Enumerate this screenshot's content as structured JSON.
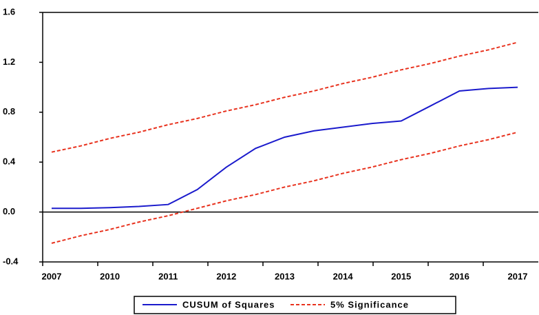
{
  "chart_data": {
    "type": "line",
    "categories": [
      "2007",
      null,
      "2010",
      null,
      "2011",
      null,
      "2012",
      null,
      "2013",
      null,
      "2014",
      null,
      "2015",
      null,
      "2016",
      null,
      "2017"
    ],
    "series": [
      {
        "name": "CUSUM of Squares",
        "color": "#1a1acc",
        "dashed": false,
        "values": [
          0.03,
          0.03,
          0.035,
          0.045,
          0.06,
          0.18,
          0.36,
          0.51,
          0.6,
          0.65,
          0.68,
          0.71,
          0.73,
          0.85,
          0.97,
          0.99,
          1.0
        ]
      },
      {
        "name": "5% Significance",
        "color": "#e8321e",
        "dashed": true,
        "values": [
          0.48,
          0.53,
          0.59,
          0.64,
          0.7,
          0.75,
          0.81,
          0.86,
          0.92,
          0.97,
          1.03,
          1.08,
          1.14,
          1.19,
          1.25,
          1.3,
          1.36
        ]
      },
      {
        "name": null,
        "color": "#e8321e",
        "dashed": true,
        "values": [
          -0.25,
          -0.19,
          -0.14,
          -0.08,
          -0.03,
          0.03,
          0.09,
          0.14,
          0.2,
          0.25,
          0.31,
          0.36,
          0.42,
          0.47,
          0.53,
          0.58,
          0.64
        ]
      }
    ],
    "ylim": [
      -0.4,
      1.6
    ],
    "yticks": [
      -0.4,
      {
        "value": 0,
        "label": "0.0"
      },
      0.4,
      0.8,
      1.2,
      1.6
    ],
    "zero_line": true,
    "grid": false,
    "legend": "bottom"
  }
}
